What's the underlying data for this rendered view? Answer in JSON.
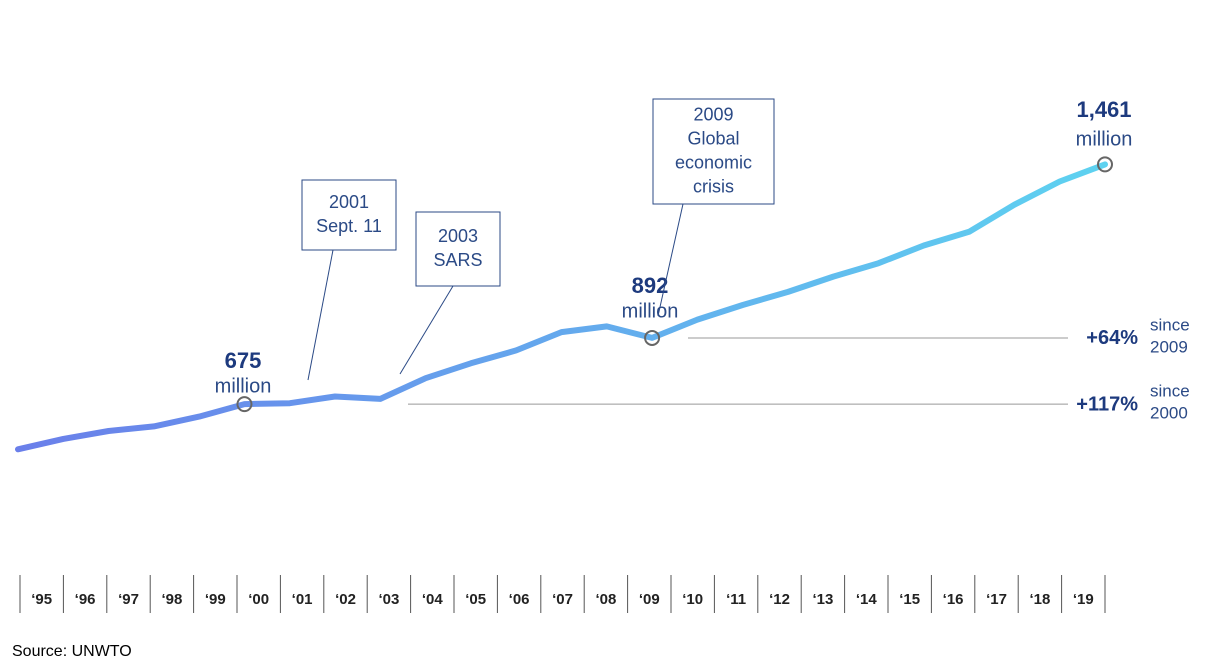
{
  "chart_data": {
    "type": "line",
    "categories": [
      "‘95",
      "‘96",
      "‘97",
      "‘98",
      "‘99",
      "‘00",
      "‘01",
      "‘02",
      "‘03",
      "‘04",
      "‘05",
      "‘06",
      "‘07",
      "‘08",
      "‘09",
      "‘10",
      "‘11",
      "‘12",
      "‘13",
      "‘14",
      "‘15",
      "‘16",
      "‘17",
      "‘18",
      "‘19"
    ],
    "values": [
      527,
      561,
      587,
      602,
      634,
      675,
      678,
      700,
      692,
      760,
      809,
      851,
      911,
      930,
      892,
      952,
      1000,
      1043,
      1093,
      1137,
      1195,
      1240,
      1329,
      1405,
      1461
    ],
    "value_labels": [
      null,
      null,
      null,
      null,
      null,
      "675",
      null,
      null,
      null,
      null,
      null,
      null,
      null,
      null,
      "892",
      null,
      null,
      null,
      null,
      null,
      null,
      null,
      null,
      null,
      "1,461"
    ],
    "value_unit": "million",
    "colors": [
      "#6a7fea",
      "#5ed2f0"
    ],
    "ylim": [
      400,
      1600
    ],
    "events": [
      {
        "lines": [
          "2001",
          "Sept. 11"
        ]
      },
      {
        "lines": [
          "2003",
          "SARS"
        ]
      },
      {
        "lines": [
          "2009",
          "Global",
          "economic",
          "crisis"
        ]
      }
    ],
    "growth": [
      {
        "value": 64,
        "label": "+64%",
        "note": [
          "since",
          "2009"
        ]
      },
      {
        "value": 117,
        "label": "+117%",
        "note": [
          "since",
          "2000"
        ]
      }
    ],
    "source": "Source: UNWTO"
  }
}
